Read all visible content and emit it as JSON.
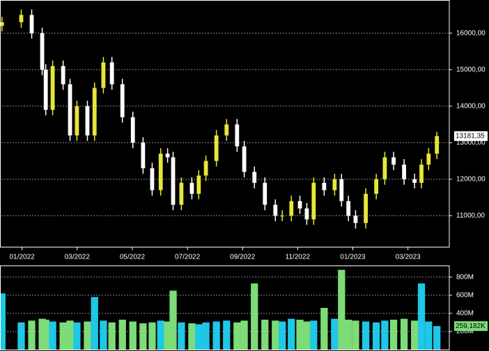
{
  "chart_data": [
    {
      "type": "candlestick",
      "x": [
        -0.73,
        -0.03,
        0.35,
        0.73,
        0.86,
        1.11,
        1.49,
        1.74,
        1.99,
        2.37,
        2.63,
        2.95,
        3.26,
        3.64,
        4.02,
        4.39,
        4.72,
        5.03,
        5.28,
        5.48,
        5.78,
        6.16,
        6.41,
        6.67,
        7.05,
        7.42,
        7.8,
        8.06,
        8.43,
        8.81,
        9.19,
        9.44,
        9.77,
        10.08,
        10.33,
        10.58,
        10.96,
        11.34,
        11.59,
        11.84,
        12.1,
        12.47,
        12.85,
        13.16,
        13.48,
        13.86,
        14.24,
        14.49,
        14.75,
        15.05
      ],
      "open": [
        16200,
        16300,
        16500,
        16000,
        15000,
        13900,
        15100,
        14600,
        13200,
        14000,
        13200,
        14500,
        15200,
        14600,
        13700,
        13000,
        12300,
        11700,
        12700,
        12600,
        11300,
        11900,
        11600,
        12100,
        12500,
        13200,
        13500,
        12900,
        12200,
        11900,
        11300,
        11000,
        11000,
        11400,
        11200,
        10900,
        11900,
        11700,
        12000,
        11400,
        11000,
        10800,
        11600,
        12000,
        12600,
        12400,
        12000,
        11900,
        12400,
        12700
      ],
      "high": [
        16450,
        16650,
        16650,
        16150,
        15150,
        15250,
        15250,
        14750,
        14150,
        14150,
        14650,
        15350,
        15350,
        14750,
        13850,
        13150,
        12450,
        12850,
        12850,
        12750,
        12050,
        12050,
        12250,
        12650,
        13350,
        13650,
        13650,
        13050,
        12350,
        12050,
        11450,
        11150,
        11550,
        11550,
        11350,
        12050,
        12050,
        12150,
        12150,
        11550,
        11150,
        11750,
        12150,
        12750,
        12750,
        12550,
        12150,
        12550,
        12850,
        13300
      ],
      "low": [
        16050,
        16150,
        15850,
        14850,
        13750,
        13750,
        14450,
        13050,
        13050,
        13050,
        13050,
        14350,
        14450,
        13550,
        12850,
        12150,
        11550,
        11550,
        12450,
        11150,
        11150,
        11450,
        11450,
        11950,
        12350,
        13050,
        12750,
        12050,
        11750,
        11150,
        10850,
        10850,
        10850,
        11050,
        10750,
        10750,
        11550,
        11550,
        11250,
        10850,
        10650,
        10650,
        11450,
        11850,
        12250,
        11850,
        11750,
        11750,
        12250,
        12550
      ],
      "close": [
        16300,
        16500,
        16000,
        15000,
        13900,
        15100,
        14600,
        13200,
        14000,
        13200,
        14500,
        15200,
        14600,
        13700,
        13000,
        12300,
        11700,
        12700,
        12600,
        11300,
        11900,
        11600,
        12100,
        12500,
        13200,
        13500,
        12900,
        12200,
        11900,
        11300,
        11000,
        11000,
        11400,
        11200,
        10900,
        11900,
        11700,
        12000,
        11400,
        11000,
        10800,
        11600,
        12000,
        12600,
        12400,
        12000,
        11900,
        12400,
        12700,
        13181.35
      ],
      "up_color": "#e6e63a",
      "down_color": "#ffffff",
      "xlim": [
        -0.75,
        15.5
      ],
      "xticks": [
        {
          "value": 0,
          "label": "01/2022"
        },
        {
          "value": 2,
          "label": "03/2022"
        },
        {
          "value": 4,
          "label": "05/2022"
        },
        {
          "value": 6,
          "label": "07/2022"
        },
        {
          "value": 8,
          "label": "09/2022"
        },
        {
          "value": 10,
          "label": "11/2022"
        },
        {
          "value": 12,
          "label": "01/2023"
        },
        {
          "value": 14,
          "label": "03/2023"
        }
      ],
      "ylim": [
        10150,
        16890
      ],
      "yticks": [
        {
          "value": 11000,
          "label": "11000,00"
        },
        {
          "value": 12000,
          "label": "12000,00"
        },
        {
          "value": 13000,
          "label": "13000,00"
        },
        {
          "value": 14000,
          "label": "14000,00"
        },
        {
          "value": 15000,
          "label": "15000,00"
        },
        {
          "value": 16000,
          "label": "16000,00"
        }
      ],
      "last_price": {
        "value": 13181.35,
        "label": "13181,35"
      },
      "grid": true
    },
    {
      "type": "bar",
      "x": [
        -0.73,
        -0.03,
        0.35,
        0.73,
        0.86,
        1.11,
        1.49,
        1.74,
        1.99,
        2.37,
        2.63,
        2.95,
        3.26,
        3.64,
        4.02,
        4.39,
        4.72,
        5.03,
        5.28,
        5.48,
        5.78,
        6.16,
        6.41,
        6.67,
        7.05,
        7.42,
        7.8,
        8.06,
        8.43,
        8.81,
        9.19,
        9.44,
        9.77,
        10.08,
        10.33,
        10.58,
        10.96,
        11.34,
        11.59,
        11.84,
        12.1,
        12.47,
        12.85,
        13.16,
        13.48,
        13.86,
        14.24,
        14.49,
        14.75,
        15.05
      ],
      "values": [
        620,
        300,
        320,
        340,
        330,
        310,
        300,
        320,
        300,
        310,
        580,
        320,
        300,
        330,
        310,
        290,
        300,
        320,
        310,
        650,
        300,
        290,
        280,
        300,
        310,
        320,
        300,
        320,
        730,
        330,
        320,
        310,
        340,
        330,
        310,
        320,
        460,
        340,
        880,
        330,
        320,
        310,
        300,
        320,
        330,
        340,
        320,
        730,
        310,
        259.182
      ],
      "up_color": "#1ec8e6",
      "down_color": "#7ddc78",
      "xlim": [
        -0.75,
        15.5
      ],
      "ylim": [
        0,
        920
      ],
      "yticks": [
        {
          "value": 200,
          "label": "200M"
        },
        {
          "value": 400,
          "label": "400M"
        },
        {
          "value": 600,
          "label": "600M"
        },
        {
          "value": 800,
          "label": "800M"
        }
      ],
      "last_volume": {
        "value": 259.182,
        "label": "259,182K"
      },
      "grid": true
    }
  ]
}
